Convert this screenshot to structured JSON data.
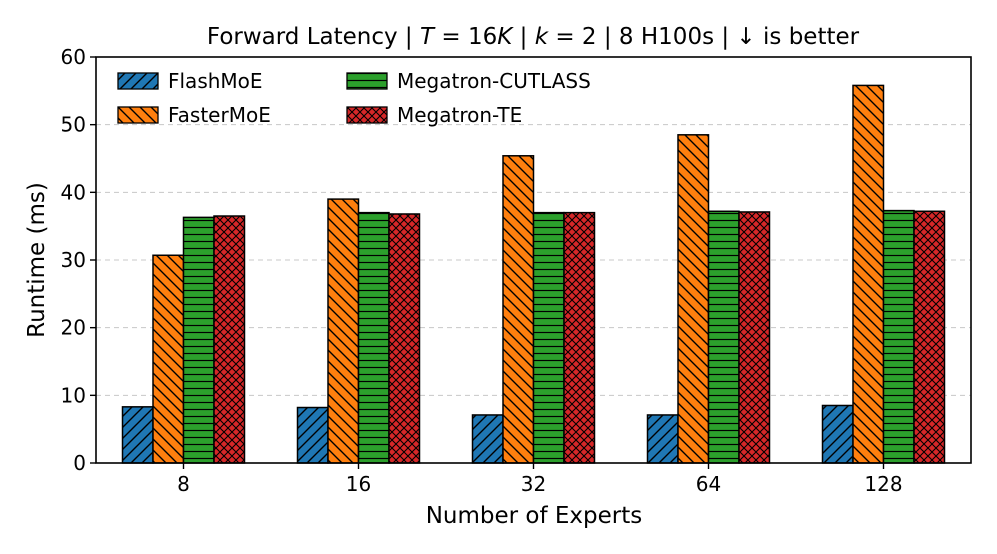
{
  "chart_data": {
    "type": "bar",
    "title": {
      "prefix": "Forward Latency | ",
      "t_var": "T",
      "t_val": " = 16",
      "t_unit": "K",
      "sep1": " | ",
      "k_var": "k",
      "k_val": " = 2",
      "suffix": " | 8 H100s |  ↓  is better"
    },
    "xlabel": "Number of Experts",
    "ylabel": "Runtime (ms)",
    "ylim": [
      0,
      60
    ],
    "yticks": [
      0,
      10,
      20,
      30,
      40,
      50,
      60
    ],
    "grid": "y-dashed",
    "legend_position": "top-left",
    "categories": [
      "8",
      "16",
      "32",
      "64",
      "128"
    ],
    "series": [
      {
        "name": "FlashMoE",
        "color": "#1f77b4",
        "hatch": "diagonal-fwd",
        "values": [
          8.3,
          8.2,
          7.1,
          7.1,
          8.5
        ]
      },
      {
        "name": "FasterMoE",
        "color": "#ff7f0e",
        "hatch": "diagonal-back",
        "values": [
          30.7,
          39.0,
          45.4,
          48.5,
          55.8
        ]
      },
      {
        "name": "Megatron-CUTLASS",
        "color": "#2ca02c",
        "hatch": "horizontal",
        "values": [
          36.3,
          37.0,
          37.0,
          37.2,
          37.3
        ]
      },
      {
        "name": "Megatron-TE",
        "color": "#d62728",
        "hatch": "cross",
        "values": [
          36.5,
          36.8,
          37.0,
          37.1,
          37.2
        ]
      }
    ]
  }
}
